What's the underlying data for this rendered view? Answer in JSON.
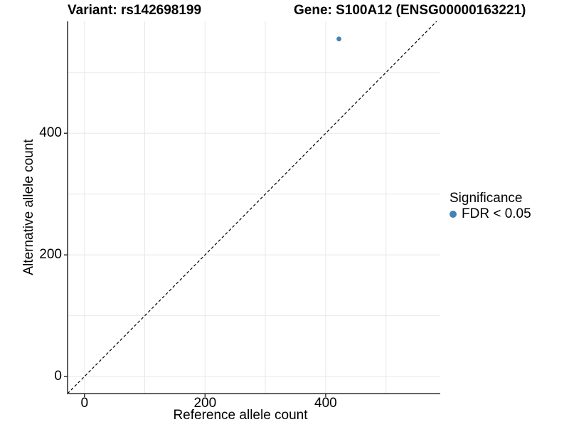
{
  "titles": {
    "variant": "Variant: rs142698199",
    "gene": "Gene: S100A12 (ENSG00000163221)"
  },
  "chart_data": {
    "type": "scatter",
    "xlabel": "Reference allele count",
    "ylabel": "Alternative allele count",
    "xlim": [
      -28,
      590
    ],
    "ylim": [
      -28,
      584
    ],
    "x_ticks": [
      0,
      200,
      400
    ],
    "y_ticks": [
      0,
      200,
      400
    ],
    "grid": true,
    "grid_interval": 100,
    "points": [
      {
        "x": 422,
        "y": 555,
        "significance": "FDR < 0.05"
      }
    ],
    "point_color": "#4682B4",
    "identity_line": {
      "style": "dashed",
      "color": "#000000"
    },
    "legend": {
      "title": "Significance",
      "position": "right",
      "entries": [
        {
          "label": "FDR < 0.05",
          "color": "#4682B4"
        }
      ]
    }
  },
  "colors": {
    "background": "#ffffff",
    "axis_line": "#4d4d4d",
    "tick_mark": "#333333",
    "grid_line": "#e8e8e8",
    "text": "#000000"
  }
}
